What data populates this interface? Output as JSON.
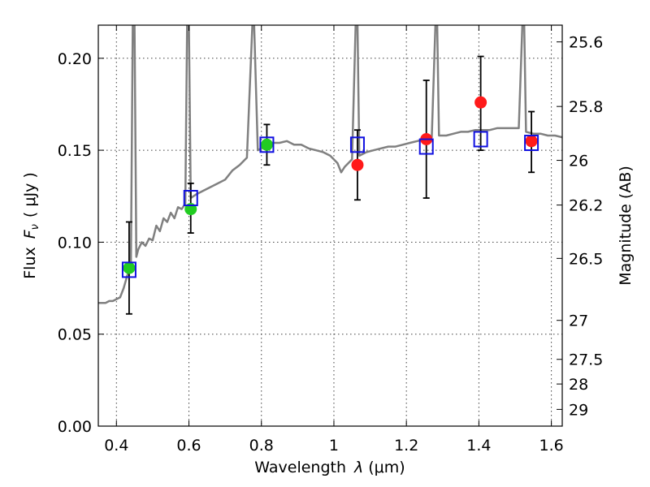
{
  "chart_data": {
    "type": "scatter",
    "xlabel_text": "Wavelength",
    "xlabel_symbol": "λ",
    "xlabel_unit": "(μm)",
    "ylabel_text": "Flux",
    "ylabel_symbol": "F",
    "ylabel_subscript": "ν",
    "ylabel_unit": "( μJy )",
    "y2label": "Magnitude (AB)",
    "xlim": [
      0.35,
      1.63
    ],
    "ylim": [
      0,
      0.218
    ],
    "xticks": [
      {
        "value": 0.4,
        "label": "0.4"
      },
      {
        "value": 0.6,
        "label": "0.6"
      },
      {
        "value": 0.8,
        "label": "0.8"
      },
      {
        "value": 1.0,
        "label": "1"
      },
      {
        "value": 1.2,
        "label": "1.2"
      },
      {
        "value": 1.4,
        "label": "1.4"
      },
      {
        "value": 1.6,
        "label": "1.6"
      }
    ],
    "yticks": [
      {
        "value": 0.0,
        "label": "0.00"
      },
      {
        "value": 0.05,
        "label": "0.05"
      },
      {
        "value": 0.1,
        "label": "0.10"
      },
      {
        "value": 0.15,
        "label": "0.15"
      },
      {
        "value": 0.2,
        "label": "0.20"
      }
    ],
    "y2ticks": [
      {
        "label": "25.6",
        "flux": 0.2089
      },
      {
        "label": "25.8",
        "flux": 0.1738
      },
      {
        "label": "26",
        "flux": 0.1445
      },
      {
        "label": "26.2",
        "flux": 0.1202
      },
      {
        "label": "26.5",
        "flux": 0.0912
      },
      {
        "label": "27",
        "flux": 0.0575
      },
      {
        "label": "27.5",
        "flux": 0.0363
      },
      {
        "label": "28",
        "flux": 0.0229
      },
      {
        "label": "29",
        "flux": 0.0091
      }
    ],
    "grid": true,
    "template_spectrum": {
      "color": "#808080",
      "points": [
        [
          0.35,
          0.067
        ],
        [
          0.37,
          0.067
        ],
        [
          0.38,
          0.068
        ],
        [
          0.39,
          0.068
        ],
        [
          0.4,
          0.069
        ],
        [
          0.41,
          0.07
        ],
        [
          0.42,
          0.075
        ],
        [
          0.43,
          0.082
        ],
        [
          0.44,
          0.087
        ],
        [
          0.445,
          0.218
        ],
        [
          0.45,
          0.218
        ],
        [
          0.455,
          0.092
        ],
        [
          0.46,
          0.096
        ],
        [
          0.47,
          0.1
        ],
        [
          0.48,
          0.098
        ],
        [
          0.49,
          0.102
        ],
        [
          0.5,
          0.101
        ],
        [
          0.51,
          0.109
        ],
        [
          0.52,
          0.106
        ],
        [
          0.53,
          0.113
        ],
        [
          0.54,
          0.111
        ],
        [
          0.55,
          0.116
        ],
        [
          0.56,
          0.113
        ],
        [
          0.57,
          0.119
        ],
        [
          0.58,
          0.118
        ],
        [
          0.59,
          0.121
        ],
        [
          0.595,
          0.218
        ],
        [
          0.6,
          0.218
        ],
        [
          0.605,
          0.124
        ],
        [
          0.62,
          0.126
        ],
        [
          0.64,
          0.128
        ],
        [
          0.66,
          0.13
        ],
        [
          0.68,
          0.132
        ],
        [
          0.7,
          0.134
        ],
        [
          0.72,
          0.139
        ],
        [
          0.74,
          0.142
        ],
        [
          0.76,
          0.146
        ],
        [
          0.775,
          0.218
        ],
        [
          0.78,
          0.218
        ],
        [
          0.79,
          0.15
        ],
        [
          0.81,
          0.152
        ],
        [
          0.83,
          0.154
        ],
        [
          0.85,
          0.154
        ],
        [
          0.87,
          0.155
        ],
        [
          0.89,
          0.153
        ],
        [
          0.91,
          0.153
        ],
        [
          0.93,
          0.151
        ],
        [
          0.95,
          0.15
        ],
        [
          0.97,
          0.149
        ],
        [
          0.99,
          0.147
        ],
        [
          1.01,
          0.143
        ],
        [
          1.02,
          0.138
        ],
        [
          1.03,
          0.141
        ],
        [
          1.05,
          0.145
        ],
        [
          1.06,
          0.218
        ],
        [
          1.065,
          0.218
        ],
        [
          1.07,
          0.147
        ],
        [
          1.09,
          0.149
        ],
        [
          1.11,
          0.15
        ],
        [
          1.13,
          0.151
        ],
        [
          1.15,
          0.152
        ],
        [
          1.17,
          0.152
        ],
        [
          1.19,
          0.153
        ],
        [
          1.21,
          0.154
        ],
        [
          1.23,
          0.155
        ],
        [
          1.25,
          0.156
        ],
        [
          1.27,
          0.157
        ],
        [
          1.28,
          0.218
        ],
        [
          1.285,
          0.218
        ],
        [
          1.29,
          0.158
        ],
        [
          1.31,
          0.158
        ],
        [
          1.33,
          0.159
        ],
        [
          1.35,
          0.16
        ],
        [
          1.37,
          0.16
        ],
        [
          1.39,
          0.161
        ],
        [
          1.41,
          0.161
        ],
        [
          1.43,
          0.161
        ],
        [
          1.45,
          0.162
        ],
        [
          1.47,
          0.162
        ],
        [
          1.49,
          0.162
        ],
        [
          1.51,
          0.162
        ],
        [
          1.52,
          0.218
        ],
        [
          1.525,
          0.218
        ],
        [
          1.53,
          0.16
        ],
        [
          1.55,
          0.159
        ],
        [
          1.57,
          0.159
        ],
        [
          1.59,
          0.158
        ],
        [
          1.61,
          0.158
        ],
        [
          1.63,
          0.157
        ]
      ]
    },
    "series": [
      {
        "marker": "circle",
        "color": "#22cc22",
        "points": [
          {
            "x": 0.435,
            "y": 0.086
          },
          {
            "x": 0.605,
            "y": 0.118
          },
          {
            "x": 0.815,
            "y": 0.153
          }
        ]
      },
      {
        "marker": "circle",
        "color": "#ff1a1a",
        "points": [
          {
            "x": 1.065,
            "y": 0.142
          },
          {
            "x": 1.255,
            "y": 0.156
          },
          {
            "x": 1.405,
            "y": 0.176
          },
          {
            "x": 1.545,
            "y": 0.155
          }
        ]
      },
      {
        "marker": "square-open",
        "color": "#1010e0",
        "points": [
          {
            "x": 0.435,
            "y": 0.085
          },
          {
            "x": 0.605,
            "y": 0.124
          },
          {
            "x": 0.815,
            "y": 0.153
          },
          {
            "x": 1.065,
            "y": 0.153
          },
          {
            "x": 1.255,
            "y": 0.152
          },
          {
            "x": 1.405,
            "y": 0.156
          },
          {
            "x": 1.545,
            "y": 0.154
          }
        ]
      }
    ],
    "errorbars": [
      {
        "x": 0.435,
        "ylow": 0.061,
        "yhigh": 0.111
      },
      {
        "x": 0.605,
        "ylow": 0.105,
        "yhigh": 0.132
      },
      {
        "x": 0.815,
        "ylow": 0.142,
        "yhigh": 0.164
      },
      {
        "x": 1.065,
        "ylow": 0.123,
        "yhigh": 0.161
      },
      {
        "x": 1.255,
        "ylow": 0.124,
        "yhigh": 0.188
      },
      {
        "x": 1.405,
        "ylow": 0.15,
        "yhigh": 0.201
      },
      {
        "x": 1.545,
        "ylow": 0.138,
        "yhigh": 0.171
      }
    ]
  }
}
